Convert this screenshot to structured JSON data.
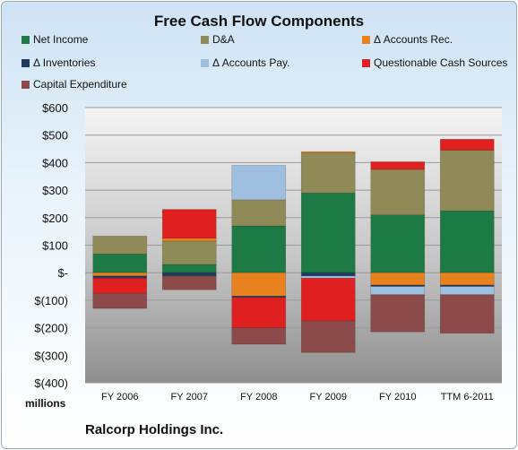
{
  "chart_data": {
    "type": "bar",
    "stacked": true,
    "title": "Free Cash Flow Components",
    "units_label": "millions",
    "company": "Ralcorp Holdings Inc.",
    "categories": [
      "FY 2006",
      "FY 2007",
      "FY 2008",
      "FY 2009",
      "FY 2010",
      "TTM 6-2011"
    ],
    "ylim": [
      -400,
      600
    ],
    "yticks": [
      -400,
      -300,
      -200,
      -100,
      0,
      100,
      200,
      300,
      400,
      500,
      600
    ],
    "ytick_labels": [
      "$(400)",
      "$(300)",
      "$(200)",
      "$(100)",
      "$-",
      "$100",
      "$200",
      "$300",
      "$400",
      "$500",
      "$600"
    ],
    "legend_position": "top",
    "series": [
      {
        "name": "Net Income",
        "color": "#1e7a45",
        "values": [
          68,
          30,
          170,
          290,
          210,
          225
        ]
      },
      {
        "name": "D&A",
        "color": "#8f8a58",
        "values": [
          65,
          85,
          95,
          145,
          165,
          220
        ]
      },
      {
        "name": "Δ Accounts Rec.",
        "color": "#e8821e",
        "values": [
          -12,
          10,
          -85,
          5,
          -45,
          -45
        ]
      },
      {
        "name": "Δ Inventories",
        "color": "#1f3a5c",
        "values": [
          -8,
          -12,
          -5,
          -12,
          -5,
          -5
        ]
      },
      {
        "name": "Δ Accounts Pay.",
        "color": "#9fbfe0",
        "values": [
          0,
          0,
          125,
          -8,
          -30,
          -30
        ]
      },
      {
        "name": "Questionable Cash Sources",
        "color": "#e02020",
        "values": [
          -55,
          105,
          -110,
          -155,
          28,
          40
        ]
      },
      {
        "name": "Capital Expenditure",
        "color": "#8c4a4a",
        "values": [
          -55,
          -50,
          -60,
          -115,
          -135,
          -140
        ]
      }
    ]
  }
}
